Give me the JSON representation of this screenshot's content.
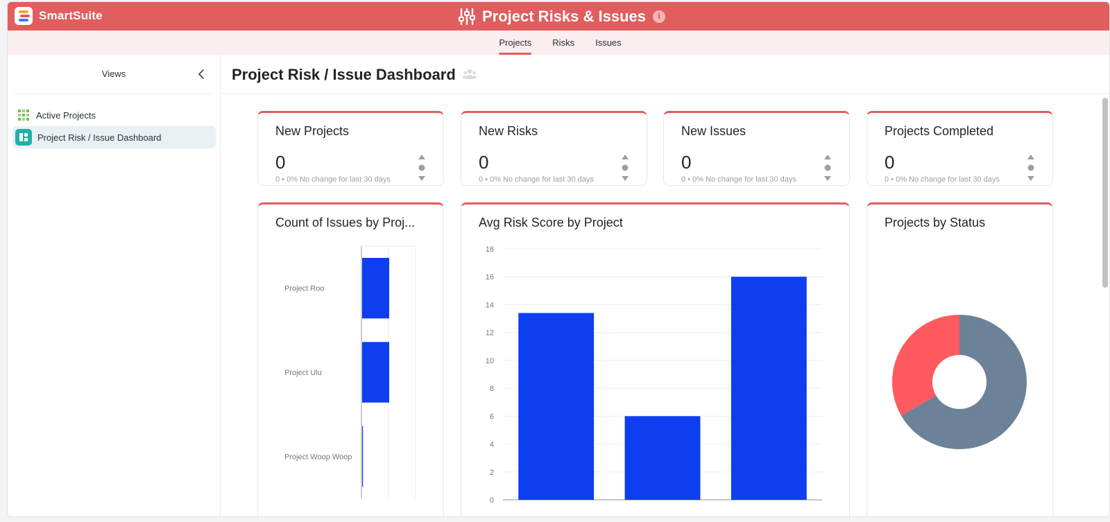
{
  "brand": {
    "name": "SmartSuite"
  },
  "app": {
    "title": "Project Risks & Issues"
  },
  "tabs": [
    {
      "label": "Projects",
      "active": true
    },
    {
      "label": "Risks",
      "active": false
    },
    {
      "label": "Issues",
      "active": false
    }
  ],
  "sidebar": {
    "title": "Views",
    "items": [
      {
        "label": "Active Projects",
        "icon": "grid-icon",
        "active": false
      },
      {
        "label": "Project Risk / Issue Dashboard",
        "icon": "dashboard-icon",
        "active": true
      }
    ]
  },
  "page": {
    "title": "Project Risk / Issue Dashboard"
  },
  "kpis": [
    {
      "title": "New Projects",
      "value": "0",
      "sub": "0 • 0%  No change for last 30 days"
    },
    {
      "title": "New Risks",
      "value": "0",
      "sub": "0 • 0%  No change for last 30 days"
    },
    {
      "title": "New Issues",
      "value": "0",
      "sub": "0 • 0%  No change for last 30 days"
    },
    {
      "title": "Projects Completed",
      "value": "0",
      "sub": "0 • 0%  No change for last 30 days"
    }
  ],
  "colors": {
    "accent": "#e15d5e",
    "bar": "#0d3ff0",
    "pie_red": "#ff5a5f",
    "pie_slate": "#6b8299"
  },
  "chart_data": [
    {
      "type": "bar",
      "orientation": "horizontal",
      "title": "Count of Issues by Proj...",
      "categories": [
        "Project Roo",
        "Project Ulu",
        "Project Woop Woop"
      ],
      "values": [
        1,
        1,
        0.02
      ],
      "xlim": [
        0,
        2
      ],
      "grid": true
    },
    {
      "type": "bar",
      "title": "Avg Risk Score by Project",
      "categories": [
        "",
        "",
        ""
      ],
      "values": [
        13.4,
        6,
        16
      ],
      "ylim": [
        0,
        18
      ],
      "yticks": [
        0,
        2,
        4,
        6,
        8,
        10,
        12,
        14,
        16,
        18
      ],
      "grid": true
    },
    {
      "type": "pie",
      "style": "donut",
      "title": "Projects by Status",
      "slices": [
        {
          "value": 2,
          "color": "#6b8299"
        },
        {
          "value": 1,
          "color": "#ff5a5f"
        }
      ]
    }
  ]
}
